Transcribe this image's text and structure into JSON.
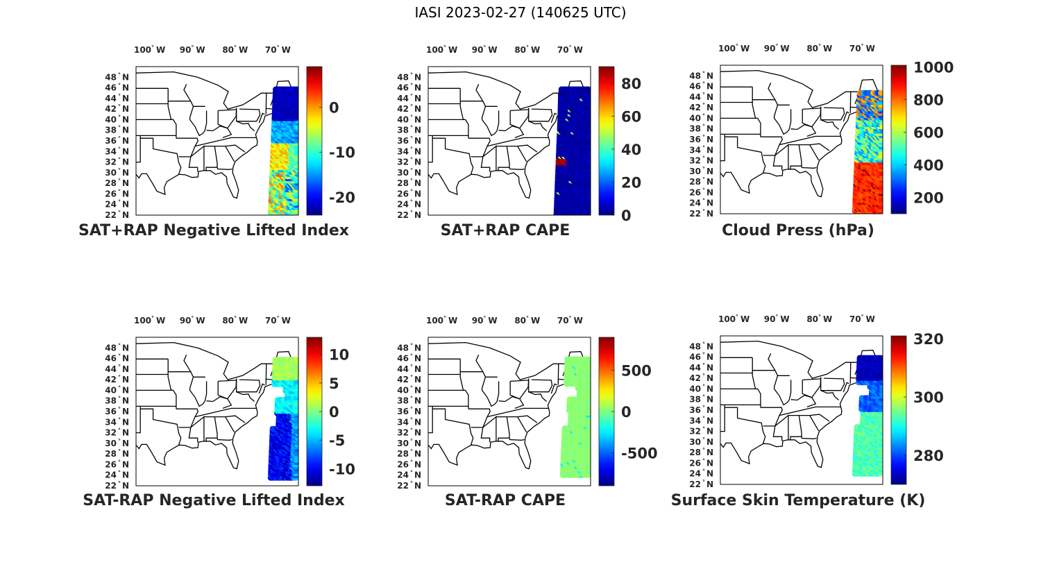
{
  "title": "IASI 2023-02-27 (140625 UTC)",
  "lon_ticks": [
    {
      "value": -100,
      "label": "100",
      "hemi": "W"
    },
    {
      "value": -90,
      "label": "90",
      "hemi": "W"
    },
    {
      "value": -80,
      "label": "80",
      "hemi": "W"
    },
    {
      "value": -70,
      "label": "70",
      "hemi": "W"
    }
  ],
  "lat_ticks": [
    {
      "value": 48,
      "label": "48",
      "hemi": "N"
    },
    {
      "value": 46,
      "label": "46",
      "hemi": "N"
    },
    {
      "value": 44,
      "label": "44",
      "hemi": "N"
    },
    {
      "value": 42,
      "label": "42",
      "hemi": "N"
    },
    {
      "value": 40,
      "label": "40",
      "hemi": "N"
    },
    {
      "value": 38,
      "label": "38",
      "hemi": "N"
    },
    {
      "value": 36,
      "label": "36",
      "hemi": "N"
    },
    {
      "value": 34,
      "label": "34",
      "hemi": "N"
    },
    {
      "value": 32,
      "label": "32",
      "hemi": "N"
    },
    {
      "value": 30,
      "label": "30",
      "hemi": "N"
    },
    {
      "value": 28,
      "label": "28",
      "hemi": "N"
    },
    {
      "value": 26,
      "label": "26",
      "hemi": "N"
    },
    {
      "value": 24,
      "label": "24",
      "hemi": "N"
    },
    {
      "value": 22,
      "label": "22",
      "hemi": "N"
    }
  ],
  "lon_range": [
    -104,
    -66
  ],
  "lat_range": [
    22,
    50
  ],
  "colormap": "jet",
  "panels": [
    {
      "id": "sat-rap-plus-nli",
      "title": "SAT+RAP Negative Lifted Index",
      "cbar": {
        "range": [
          -24,
          9
        ],
        "ticks": [
          {
            "v": 0,
            "t": "0"
          },
          {
            "v": -10,
            "t": "-10"
          },
          {
            "v": -20,
            "t": "-20"
          }
        ]
      },
      "swath": {
        "lon_w": -72.5,
        "lon_e": -66.2,
        "lat_s": 22.2,
        "lat_n": 46,
        "pattern": "nli_plus"
      }
    },
    {
      "id": "sat-rap-plus-cape",
      "title": "SAT+RAP CAPE",
      "cbar": {
        "range": [
          0,
          90
        ],
        "ticks": [
          {
            "v": 80,
            "t": "80"
          },
          {
            "v": 60,
            "t": "60"
          },
          {
            "v": 40,
            "t": "40"
          },
          {
            "v": 20,
            "t": "20"
          },
          {
            "v": 0,
            "t": "0"
          }
        ]
      },
      "swath": {
        "lon_w": -74.0,
        "lon_e": -66.2,
        "lat_s": 22.2,
        "lat_n": 46,
        "pattern": "cape_plus"
      }
    },
    {
      "id": "cloud-press",
      "title": "Cloud Press (hPa)",
      "cbar": {
        "range": [
          100,
          1010
        ],
        "ticks": [
          {
            "v": 1000,
            "t": "1000"
          },
          {
            "v": 800,
            "t": "800"
          },
          {
            "v": 600,
            "t": "600"
          },
          {
            "v": 400,
            "t": "400"
          },
          {
            "v": 200,
            "t": "200"
          }
        ]
      },
      "swath": {
        "lon_w": -72.5,
        "lon_e": -66.2,
        "lat_s": 22.5,
        "lat_n": 45,
        "pattern": "cloud"
      }
    },
    {
      "id": "sat-rap-minus-nli",
      "title": "SAT-RAP Negative Lifted Index",
      "cbar": {
        "range": [
          -13,
          13
        ],
        "ticks": [
          {
            "v": 10,
            "t": "10"
          },
          {
            "v": 5,
            "t": "5"
          },
          {
            "v": 0,
            "t": "0"
          },
          {
            "v": -5,
            "t": "-5"
          },
          {
            "v": -10,
            "t": "-10"
          }
        ]
      },
      "swath": {
        "lon_w": -72.5,
        "lon_e": -66.2,
        "lat_s": 23.5,
        "lat_n": 46,
        "pattern": "nli_minus"
      }
    },
    {
      "id": "sat-rap-minus-cape",
      "title": "SAT-RAP CAPE",
      "cbar": {
        "range": [
          -900,
          900
        ],
        "ticks": [
          {
            "v": 500,
            "t": "500"
          },
          {
            "v": 0,
            "t": "0"
          },
          {
            "v": -500,
            "t": "-500"
          }
        ]
      },
      "swath": {
        "lon_w": -72.5,
        "lon_e": -66.2,
        "lat_s": 24.0,
        "lat_n": 46,
        "pattern": "cape_minus"
      }
    },
    {
      "id": "surface-skin-temp",
      "title": "Surface Skin Temperature (K)",
      "cbar": {
        "range": [
          270,
          321
        ],
        "ticks": [
          {
            "v": 320,
            "t": "320"
          },
          {
            "v": 300,
            "t": "300"
          },
          {
            "v": 280,
            "t": "280"
          }
        ]
      },
      "swath": {
        "lon_w": -72.5,
        "lon_e": -66.2,
        "lat_s": 24.0,
        "lat_n": 46,
        "pattern": "skin"
      }
    }
  ]
}
